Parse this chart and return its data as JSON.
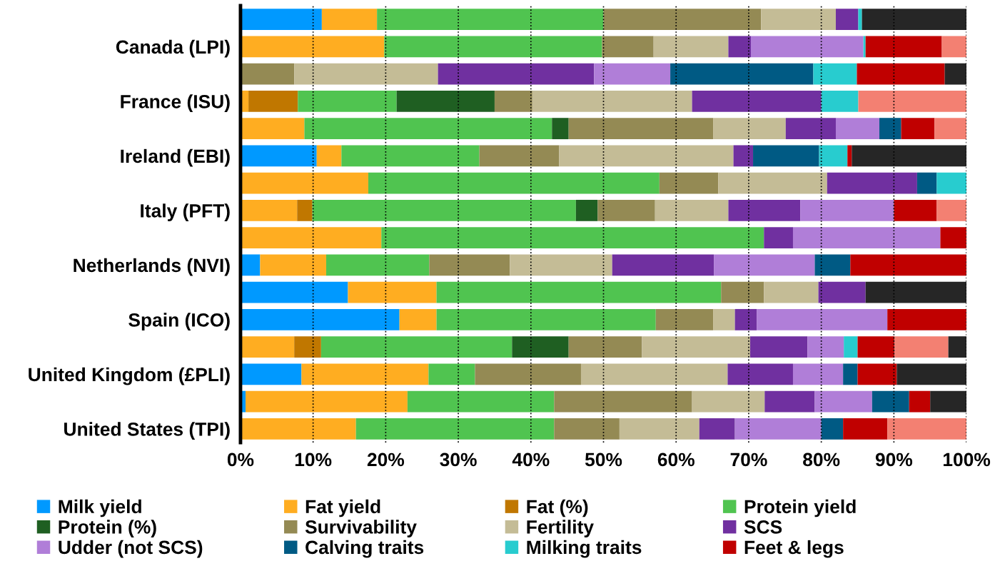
{
  "chart_data": {
    "type": "bar",
    "orientation": "horizontal",
    "stacked": true,
    "categories": [
      null,
      "Canada (LPI)",
      null,
      "France (ISU)",
      null,
      "Ireland (EBI)",
      null,
      "Italy (PFT)",
      null,
      "Netherlands (NVI)",
      null,
      "Spain (ICO)",
      null,
      "United Kingdom (£PLI)",
      null,
      "United States (TPI)"
    ],
    "xlim": [
      0,
      100
    ],
    "xticks": [
      {
        "value": 0,
        "label": "0%"
      },
      {
        "value": 10,
        "label": "10%"
      },
      {
        "value": 20,
        "label": "20%"
      },
      {
        "value": 30,
        "label": "30%"
      },
      {
        "value": 40,
        "label": "40%"
      },
      {
        "value": 50,
        "label": "50%"
      },
      {
        "value": 60,
        "label": "60%"
      },
      {
        "value": 70,
        "label": "70%"
      },
      {
        "value": 80,
        "label": "80%"
      },
      {
        "value": 90,
        "label": "90%"
      },
      {
        "value": 100,
        "label": "100%"
      }
    ],
    "grid": "x",
    "line_style": "dotted",
    "legend": "bottom",
    "series": [
      {
        "name": "Milk yield",
        "color": "#0099ff",
        "values": [
          11.2,
          null,
          null,
          null,
          null,
          10.5,
          null,
          null,
          null,
          2.7,
          14.8,
          21.9,
          null,
          8.4,
          0.7,
          null
        ]
      },
      {
        "name": "Fat yield",
        "color": "#ffad21",
        "values": [
          7.6,
          19.8,
          null,
          1.1,
          8.8,
          3.4,
          17.6,
          7.8,
          19.4,
          9.1,
          12.2,
          5.1,
          7.4,
          17.5,
          22.3,
          15.9
        ]
      },
      {
        "name": "Fat (%)",
        "color": "#c07700",
        "values": [
          null,
          null,
          null,
          6.8,
          null,
          null,
          null,
          2.1,
          null,
          null,
          null,
          null,
          3.7,
          null,
          null,
          null
        ]
      },
      {
        "name": "Protein yield",
        "color": "#50c450",
        "values": [
          31.2,
          30.0,
          null,
          13.6,
          34.1,
          19.0,
          40.1,
          36.3,
          52.7,
          14.2,
          39.2,
          30.2,
          26.3,
          6.4,
          20.2,
          27.3
        ]
      },
      {
        "name": "Protein (%)",
        "color": "#1f5f22",
        "values": [
          null,
          null,
          null,
          13.5,
          2.3,
          null,
          null,
          3.0,
          null,
          null,
          null,
          null,
          7.8,
          null,
          null,
          null
        ]
      },
      {
        "name": "Survivability",
        "color": "#948a54",
        "values": [
          21.7,
          7.1,
          7.4,
          5.2,
          19.9,
          11.0,
          8.1,
          7.9,
          null,
          11.1,
          5.9,
          7.9,
          10.1,
          14.6,
          19.0,
          9.0
        ]
      },
      {
        "name": "Fertility",
        "color": "#c4bc96",
        "values": [
          10.3,
          10.3,
          19.8,
          22.0,
          10.0,
          24.0,
          15.0,
          10.1,
          null,
          14.1,
          7.5,
          3.0,
          14.9,
          20.2,
          10.0,
          11.0
        ]
      },
      {
        "name": "SCS",
        "color": "#7030a0",
        "values": [
          3.1,
          3.1,
          21.5,
          17.8,
          6.9,
          2.7,
          12.4,
          9.9,
          4.0,
          14.0,
          6.5,
          3.0,
          7.9,
          9.0,
          6.9,
          4.9
        ]
      },
      {
        "name": "Udder (not SCS)",
        "color": "#b07ed8",
        "values": [
          null,
          15.5,
          10.5,
          null,
          6.0,
          null,
          null,
          12.9,
          20.3,
          13.9,
          null,
          18.0,
          5.0,
          6.9,
          7.9,
          11.9
        ]
      },
      {
        "name": "Calving traits",
        "color": "#005a84",
        "values": [
          null,
          null,
          19.7,
          null,
          3.0,
          9.1,
          2.7,
          null,
          null,
          4.9,
          null,
          null,
          null,
          2.0,
          5.1,
          3.0
        ]
      },
      {
        "name": "Milking traits",
        "color": "#28cccf",
        "values": [
          0.5,
          0.3,
          6.0,
          5.1,
          null,
          3.9,
          4.1,
          null,
          null,
          null,
          null,
          null,
          1.9,
          null,
          null,
          null
        ]
      },
      {
        "name": "Feet & legs",
        "color": "#c00000",
        "values": [
          null,
          10.5,
          12.1,
          null,
          4.6,
          0.6,
          null,
          5.9,
          3.6,
          16.0,
          null,
          10.9,
          5.1,
          5.4,
          2.9,
          6.1
        ]
      },
      {
        "color": "#f38072",
        "values": [
          null,
          3.4,
          null,
          14.9,
          4.4,
          null,
          null,
          4.1,
          null,
          null,
          null,
          null,
          7.4,
          null,
          null,
          10.9
        ]
      },
      {
        "color": "#262626",
        "values": [
          14.4,
          null,
          3.0,
          null,
          null,
          15.8,
          null,
          null,
          null,
          null,
          13.9,
          null,
          2.5,
          9.6,
          5.0,
          null
        ]
      }
    ]
  }
}
